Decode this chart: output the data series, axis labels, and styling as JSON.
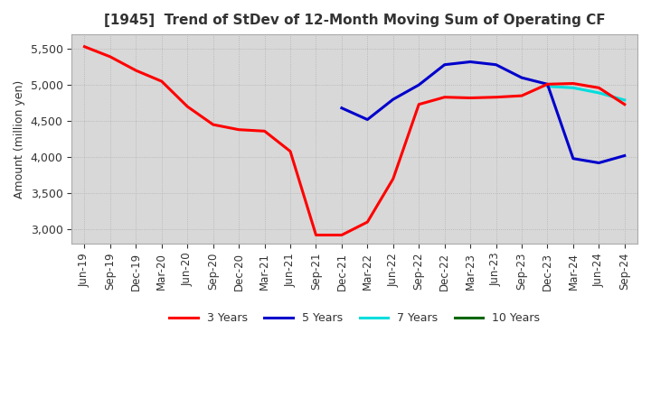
{
  "title": "[1945]  Trend of StDev of 12-Month Moving Sum of Operating CF",
  "ylabel": "Amount (million yen)",
  "ylim": [
    2800,
    5700
  ],
  "yticks": [
    3000,
    3500,
    4000,
    4500,
    5000,
    5500
  ],
  "line_colors": {
    "3y": "#ff0000",
    "5y": "#0000cc",
    "7y": "#00dddd",
    "10y": "#006600"
  },
  "legend_labels": [
    "3 Years",
    "5 Years",
    "7 Years",
    "10 Years"
  ],
  "x_labels": [
    "Jun-19",
    "Sep-19",
    "Dec-19",
    "Mar-20",
    "Jun-20",
    "Sep-20",
    "Dec-20",
    "Mar-21",
    "Jun-21",
    "Sep-21",
    "Dec-21",
    "Mar-22",
    "Jun-22",
    "Sep-22",
    "Dec-22",
    "Mar-23",
    "Jun-23",
    "Sep-23",
    "Dec-23",
    "Mar-24",
    "Jun-24",
    "Sep-24"
  ],
  "series_3y": [
    5530,
    5390,
    5200,
    5050,
    4700,
    4450,
    4380,
    4360,
    4080,
    2920,
    2920,
    3100,
    3700,
    4730,
    4830,
    4820,
    4830,
    4850,
    5010,
    5020,
    4960,
    4730
  ],
  "series_5y": [
    null,
    null,
    null,
    null,
    null,
    null,
    null,
    null,
    null,
    null,
    4680,
    4520,
    4800,
    5000,
    5280,
    5320,
    5280,
    5100,
    5010,
    3980,
    3920,
    4020
  ],
  "series_7y": [
    null,
    null,
    null,
    null,
    null,
    null,
    null,
    null,
    null,
    null,
    null,
    null,
    null,
    null,
    null,
    null,
    null,
    null,
    4980,
    4960,
    4890,
    4790
  ],
  "series_10y": [
    null,
    null,
    null,
    null,
    null,
    null,
    null,
    null,
    null,
    null,
    null,
    null,
    null,
    null,
    null,
    null,
    null,
    null,
    null,
    null,
    null,
    null
  ],
  "background_color": "#ffffff",
  "plot_bg_color": "#d8d8d8",
  "grid_color": "#b0b0b0"
}
